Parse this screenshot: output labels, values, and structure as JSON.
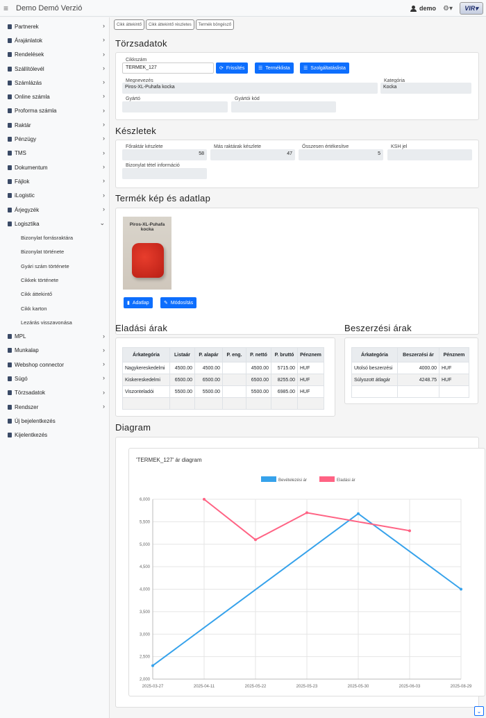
{
  "app": {
    "title": "Demo Demó Verzió",
    "user": "demo",
    "logo_text": "VIR"
  },
  "sidebar": {
    "items": [
      {
        "label": "Partnerek",
        "icon": "folder-icon",
        "chev": "›"
      },
      {
        "label": "Árajánlatok",
        "icon": "handshake-icon",
        "chev": "›"
      },
      {
        "label": "Rendelések",
        "icon": "file-icon",
        "chev": "›"
      },
      {
        "label": "Szállítólevél",
        "icon": "file-icon",
        "chev": "›"
      },
      {
        "label": "Számlázás",
        "icon": "file-icon",
        "chev": "›"
      },
      {
        "label": "Online számla",
        "icon": "globe-icon",
        "chev": "›"
      },
      {
        "label": "Proforma számla",
        "icon": "file-outline-icon",
        "chev": "›"
      },
      {
        "label": "Raktár",
        "icon": "warehouse-icon",
        "chev": "›"
      },
      {
        "label": "Pénzügy",
        "icon": "money-icon",
        "chev": "›"
      },
      {
        "label": "TMS",
        "icon": "pin-icon",
        "chev": "›"
      },
      {
        "label": "Dokumentum",
        "icon": "file-icon",
        "chev": "›"
      },
      {
        "label": "Fájlok",
        "icon": "file-icon",
        "chev": "›"
      },
      {
        "label": "iLogistic",
        "icon": "info-icon",
        "chev": "›"
      },
      {
        "label": "Árjegyzék",
        "icon": "tag-icon",
        "chev": "›"
      },
      {
        "label": "Logisztika",
        "icon": "dolly-icon",
        "chev": "⌄"
      }
    ],
    "sub_items": [
      "Bizonylat forrásraktára",
      "Bizonylat története",
      "Gyári szám története",
      "Cikkek története",
      "Cikk áttekintő",
      "Cikk karton",
      "Lezárás visszavonása"
    ],
    "items_after": [
      {
        "label": "MPL",
        "icon": "mpl-icon",
        "chev": "›"
      },
      {
        "label": "Munkalap",
        "icon": "file-icon",
        "chev": "›"
      },
      {
        "label": "Webshop connector",
        "icon": "cart-icon",
        "chev": "›"
      },
      {
        "label": "Súgó",
        "icon": "question-icon",
        "chev": "›"
      },
      {
        "label": "Törzsadatok",
        "icon": "database-icon",
        "chev": "›"
      },
      {
        "label": "Rendszer",
        "icon": "cogs-icon",
        "chev": "›"
      },
      {
        "label": "Új bejelentkezés",
        "icon": "login-icon",
        "chev": ""
      },
      {
        "label": "Kijelentkezés",
        "icon": "logout-icon",
        "chev": ""
      }
    ]
  },
  "tabs": [
    "Cikk áttekintő",
    "Cikk áttekintő részletes",
    "Termék böngésző"
  ],
  "torzsadatok": {
    "title": "Törzsadatok",
    "cikkszam_label": "Cikkszám",
    "cikkszam_value": "TERMEK_127",
    "btn_frissites": "Frissítés",
    "btn_termeklista": "Terméklista",
    "btn_szolgaltataslista": "Szolgáltatáslista",
    "megnevezes_label": "Megnevezés",
    "megnevezes_value": "Piros-XL-Puhafa kocka",
    "kategoria_label": "Kategória",
    "kategoria_value": "Kocka",
    "gyarto_label": "Gyártó",
    "gyarto_value": "",
    "gyartoi_kod_label": "Gyártói kód",
    "gyartoi_kod_value": ""
  },
  "keszletek": {
    "title": "Készletek",
    "foraktar_label": "Főraktár készlete",
    "foraktar_value": "58",
    "mas_label": "Más raktárak készlete",
    "mas_value": "47",
    "osszesen_label": "Összesen értékesítve",
    "osszesen_value": "5",
    "ksh_label": "KSH jel",
    "ksh_value": "",
    "bizonylat_label": "Bizonylat tétel információ",
    "bizonylat_value": ""
  },
  "termek": {
    "title": "Termék kép és adatlap",
    "image_caption": "Piros-XL-Puhafa kocka",
    "btn_adatlap": "Adatlap",
    "btn_modositas": "Módosítás"
  },
  "eladasi": {
    "title": "Eladási árak",
    "headers": [
      "Árkategória",
      "Listaár",
      "P. alapár",
      "P. eng.",
      "P. nettó",
      "P. bruttó",
      "Pénznem"
    ],
    "rows": [
      [
        "Nagykereskedelmi",
        "4500.00",
        "4500.00",
        "",
        "4500.00",
        "5715.00",
        "HUF"
      ],
      [
        "Kiskereskedelmi",
        "6500.00",
        "6500.00",
        "",
        "6500.00",
        "8255.00",
        "HUF"
      ],
      [
        "Viszonteladói",
        "5500.00",
        "5500.00",
        "",
        "5500.00",
        "6985.00",
        "HUF"
      ],
      [
        "",
        "",
        "",
        "",
        "",
        "",
        ""
      ]
    ]
  },
  "beszerzesi": {
    "title": "Beszerzési árak",
    "headers": [
      "Árkategória",
      "Beszerzési ár",
      "Pénznem"
    ],
    "rows": [
      [
        "Utolsó beszerzési",
        "4000.00",
        "HUF"
      ],
      [
        "Súlyozott átlagár",
        "4248.75",
        "HUF"
      ],
      [
        "",
        "",
        ""
      ]
    ]
  },
  "diagram": {
    "section_title": "Diagram"
  },
  "chart_data": {
    "type": "line",
    "title": "'TERMEK_127' ár diagram",
    "categories": [
      "2025-03-27",
      "2025-04-11",
      "2025-05-22",
      "2025-05-23",
      "2025-05-30",
      "2025-06-03",
      "2025-08-29"
    ],
    "series": [
      {
        "name": "Bevételezési ár",
        "color": "#36a2eb",
        "values": [
          2300,
          null,
          null,
          null,
          5680,
          null,
          4000
        ]
      },
      {
        "name": "Eladási ár",
        "color": "#ff6384",
        "values": [
          null,
          6000,
          5100,
          5700,
          null,
          5300,
          null
        ]
      }
    ],
    "ylim": [
      2000,
      6000
    ],
    "yticks": [
      "2,000",
      "2,500",
      "3,000",
      "3,500",
      "4,000",
      "4,500",
      "5,000",
      "5,500",
      "6,000"
    ],
    "legend": "top",
    "grid": true
  }
}
